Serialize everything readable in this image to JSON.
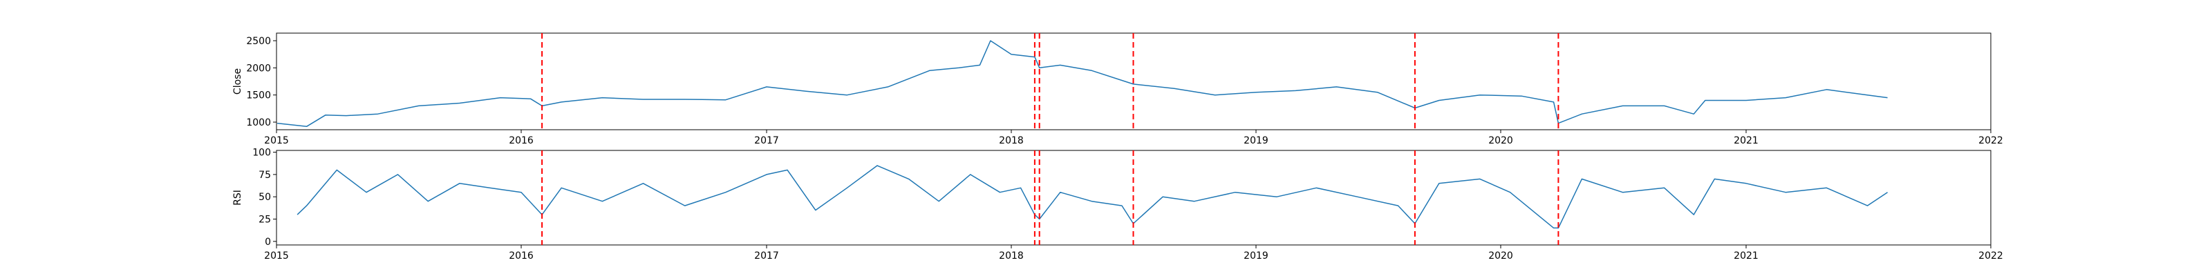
{
  "chart_data": [
    {
      "type": "line",
      "ylabel": "Close",
      "xlabel": "",
      "xlim": [
        "2015-01-01",
        "2022-01-01"
      ],
      "ylim": [
        860,
        2640
      ],
      "yticks": [
        1000,
        1500,
        2000,
        2500
      ],
      "xticks": [
        "2015",
        "2016",
        "2017",
        "2018",
        "2019",
        "2020",
        "2021",
        "2022"
      ],
      "line_color": "#1f77b4",
      "vline_color": "#ff0000",
      "vlines": [
        "2016-02-01",
        "2018-02-05",
        "2018-02-12",
        "2018-07-02",
        "2019-08-26",
        "2020-03-27"
      ],
      "series": [
        {
          "x": [
            "2015-01-02",
            "2015-02-15",
            "2015-03-15",
            "2015-04-15",
            "2015-06-01",
            "2015-08-01",
            "2015-10-01",
            "2015-12-01",
            "2016-01-15",
            "2016-02-01",
            "2016-03-01",
            "2016-05-01",
            "2016-07-01",
            "2016-09-01",
            "2016-11-01",
            "2017-01-01",
            "2017-03-01",
            "2017-05-01",
            "2017-07-01",
            "2017-09-01",
            "2017-10-15",
            "2017-11-15",
            "2017-12-01",
            "2018-01-01",
            "2018-02-05",
            "2018-02-12",
            "2018-03-15",
            "2018-05-01",
            "2018-07-02",
            "2018-09-01",
            "2018-11-01",
            "2019-01-01",
            "2019-03-01",
            "2019-05-01",
            "2019-07-01",
            "2019-08-26",
            "2019-10-01",
            "2019-12-01",
            "2020-02-01",
            "2020-03-20",
            "2020-03-27",
            "2020-05-01",
            "2020-07-01",
            "2020-09-01",
            "2020-10-15",
            "2020-11-01",
            "2021-01-01",
            "2021-03-01",
            "2021-05-01",
            "2021-07-01",
            "2021-07-31"
          ],
          "y": [
            980,
            920,
            1130,
            1120,
            1150,
            1300,
            1350,
            1450,
            1430,
            1300,
            1370,
            1450,
            1420,
            1420,
            1410,
            1650,
            1570,
            1500,
            1650,
            1950,
            2000,
            2050,
            2500,
            2250,
            2200,
            2000,
            2050,
            1950,
            1700,
            1620,
            1500,
            1550,
            1580,
            1650,
            1550,
            1260,
            1400,
            1500,
            1480,
            1370,
            980,
            1150,
            1300,
            1300,
            1150,
            1400,
            1400,
            1450,
            1600,
            1500,
            1450
          ]
        }
      ]
    },
    {
      "type": "line",
      "ylabel": "RSI",
      "xlabel": "",
      "xlim": [
        "2015-01-01",
        "2022-01-01"
      ],
      "ylim": [
        -4,
        102
      ],
      "yticks": [
        0,
        25,
        50,
        75,
        100
      ],
      "xticks": [
        "2015",
        "2016",
        "2017",
        "2018",
        "2019",
        "2020",
        "2021",
        "2022"
      ],
      "line_color": "#1f77b4",
      "vline_color": "#ff0000",
      "vlines": [
        "2016-02-01",
        "2018-02-05",
        "2018-02-12",
        "2018-07-02",
        "2019-08-26",
        "2020-03-27"
      ],
      "series": [
        {
          "x": [
            "2015-02-01",
            "2015-02-15",
            "2015-04-01",
            "2015-05-15",
            "2015-07-01",
            "2015-08-15",
            "2015-10-01",
            "2015-11-15",
            "2016-01-01",
            "2016-02-01",
            "2016-03-01",
            "2016-05-01",
            "2016-07-01",
            "2016-09-01",
            "2016-11-01",
            "2017-01-01",
            "2017-02-01",
            "2017-03-15",
            "2017-05-01",
            "2017-06-15",
            "2017-08-01",
            "2017-09-15",
            "2017-11-01",
            "2017-12-15",
            "2018-01-15",
            "2018-02-05",
            "2018-02-12",
            "2018-03-15",
            "2018-05-01",
            "2018-06-15",
            "2018-07-02",
            "2018-08-15",
            "2018-10-01",
            "2018-12-01",
            "2019-02-01",
            "2019-04-01",
            "2019-06-01",
            "2019-08-01",
            "2019-08-26",
            "2019-10-01",
            "2019-12-01",
            "2020-01-15",
            "2020-03-20",
            "2020-03-27",
            "2020-05-01",
            "2020-07-01",
            "2020-09-01",
            "2020-10-15",
            "2020-11-15",
            "2021-01-01",
            "2021-03-01",
            "2021-05-01",
            "2021-07-01",
            "2021-07-31"
          ],
          "y": [
            30,
            40,
            80,
            55,
            75,
            45,
            65,
            60,
            55,
            30,
            60,
            45,
            65,
            40,
            55,
            75,
            80,
            35,
            60,
            85,
            70,
            45,
            75,
            55,
            60,
            30,
            25,
            55,
            45,
            40,
            20,
            50,
            45,
            55,
            50,
            60,
            50,
            40,
            20,
            65,
            70,
            55,
            15,
            15,
            70,
            55,
            60,
            30,
            70,
            65,
            55,
            60,
            40,
            55
          ]
        }
      ]
    }
  ]
}
